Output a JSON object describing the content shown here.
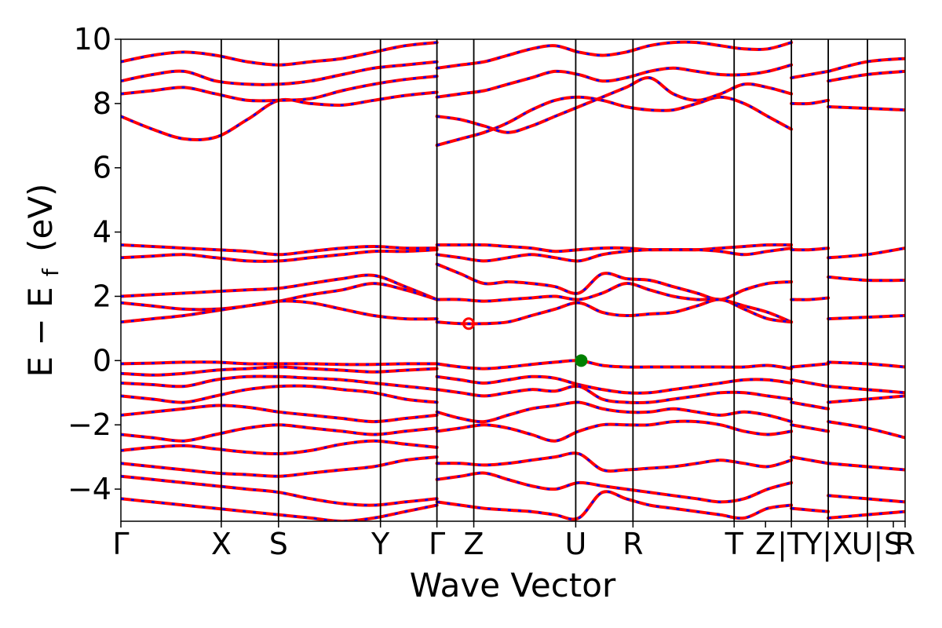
{
  "chart_data": {
    "type": "line",
    "title": "",
    "xlabel": "Wave Vector",
    "ylabel": "E − E",
    "ylabel_subscript": "f",
    "ylabel_unit": "(eV)",
    "ylim": [
      -5,
      10
    ],
    "yticks": [
      -4,
      -2,
      0,
      2,
      4,
      6,
      8,
      10
    ],
    "ytick_labels": [
      "−4",
      "−2",
      "0",
      "2",
      "4",
      "6",
      "8",
      "10"
    ],
    "xlim": [
      0,
      1
    ],
    "kpoint_labels": [
      "Γ",
      "X",
      "S",
      "Y",
      "Γ",
      "Z",
      "U",
      "R",
      "T",
      "Z",
      "|T",
      "Y|X",
      "U|",
      "S",
      "R"
    ],
    "kpoint_positions": [
      0.0,
      0.128,
      0.201,
      0.331,
      0.403,
      0.45,
      0.58,
      0.653,
      0.782,
      0.822,
      0.855,
      0.902,
      0.952,
      0.985,
      1.0
    ],
    "divider_positions": [
      0.128,
      0.201,
      0.331,
      0.403,
      0.45,
      0.58,
      0.653,
      0.782,
      0.855,
      0.902,
      0.952
    ],
    "segment_breaks": [
      0.855,
      0.902,
      0.952
    ],
    "series_colors": {
      "spin_up": "#ff0000",
      "spin_down": "#0000ff"
    },
    "bands_path1": [
      [
        7.6,
        7.2,
        6.9,
        6.95,
        7.5,
        8.1,
        8.0,
        7.95,
        8.1,
        8.25,
        8.35
      ],
      [
        8.3,
        8.4,
        8.5,
        8.3,
        8.1,
        8.1,
        8.15,
        8.4,
        8.6,
        8.75,
        8.85
      ],
      [
        8.7,
        8.9,
        9.0,
        8.7,
        8.6,
        8.6,
        8.7,
        8.9,
        9.1,
        9.2,
        9.3
      ],
      [
        9.3,
        9.5,
        9.6,
        9.5,
        9.3,
        9.2,
        9.3,
        9.4,
        9.6,
        9.8,
        9.9
      ],
      [
        3.6,
        3.55,
        3.5,
        3.45,
        3.4,
        3.3,
        3.4,
        3.5,
        3.55,
        3.5,
        3.5
      ],
      [
        3.2,
        3.25,
        3.3,
        3.2,
        3.1,
        3.1,
        3.2,
        3.3,
        3.4,
        3.4,
        3.45
      ],
      [
        2.0,
        2.05,
        2.1,
        2.15,
        2.2,
        2.25,
        2.4,
        2.55,
        2.65,
        2.3,
        1.9
      ],
      [
        1.8,
        1.7,
        1.6,
        1.6,
        1.7,
        1.85,
        2.05,
        2.2,
        2.4,
        2.2,
        1.9
      ],
      [
        1.2,
        1.3,
        1.4,
        1.55,
        1.7,
        1.85,
        1.8,
        1.6,
        1.4,
        1.3,
        1.3
      ],
      [
        -0.1,
        -0.08,
        -0.05,
        -0.05,
        -0.1,
        -0.1,
        -0.1,
        -0.12,
        -0.12,
        -0.1,
        -0.1
      ],
      [
        -0.4,
        -0.45,
        -0.4,
        -0.3,
        -0.25,
        -0.2,
        -0.25,
        -0.3,
        -0.35,
        -0.3,
        -0.25
      ],
      [
        -0.7,
        -0.75,
        -0.8,
        -0.6,
        -0.5,
        -0.5,
        -0.55,
        -0.6,
        -0.7,
        -0.8,
        -0.9
      ],
      [
        -1.1,
        -1.2,
        -1.3,
        -1.1,
        -0.9,
        -0.8,
        -0.8,
        -0.9,
        -1.0,
        -1.2,
        -1.3
      ],
      [
        -1.7,
        -1.6,
        -1.5,
        -1.4,
        -1.45,
        -1.6,
        -1.7,
        -1.8,
        -1.9,
        -1.8,
        -1.7
      ],
      [
        -2.3,
        -2.4,
        -2.5,
        -2.3,
        -2.1,
        -2.0,
        -2.1,
        -2.2,
        -2.3,
        -2.2,
        -2.1
      ],
      [
        -2.8,
        -2.7,
        -2.65,
        -2.75,
        -2.85,
        -2.9,
        -2.8,
        -2.6,
        -2.5,
        -2.6,
        -2.7
      ],
      [
        -3.2,
        -3.3,
        -3.4,
        -3.5,
        -3.55,
        -3.6,
        -3.5,
        -3.4,
        -3.3,
        -3.1,
        -3.0
      ],
      [
        -3.6,
        -3.7,
        -3.8,
        -3.9,
        -4.0,
        -4.1,
        -4.3,
        -4.45,
        -4.5,
        -4.4,
        -4.3
      ],
      [
        -4.3,
        -4.4,
        -4.5,
        -4.6,
        -4.7,
        -4.8,
        -4.9,
        -5.0,
        -4.9,
        -4.7,
        -4.5
      ]
    ],
    "bands_path2": [
      [
        6.7,
        6.9,
        7.1,
        7.4,
        7.8,
        8.1,
        8.2,
        8.1,
        7.9,
        7.8,
        7.8,
        8.0,
        8.2,
        8.0,
        7.6,
        7.2
      ],
      [
        7.6,
        7.5,
        7.3,
        7.1,
        7.3,
        7.6,
        7.9,
        8.2,
        8.5,
        8.8,
        8.3,
        8.1,
        8.3,
        8.6,
        8.5,
        8.3
      ],
      [
        8.2,
        8.3,
        8.4,
        8.6,
        8.8,
        9.0,
        8.9,
        8.7,
        8.8,
        9.0,
        9.1,
        9.0,
        8.9,
        8.9,
        9.0,
        9.2
      ],
      [
        9.1,
        9.2,
        9.3,
        9.5,
        9.7,
        9.8,
        9.6,
        9.5,
        9.6,
        9.8,
        9.9,
        9.9,
        9.8,
        9.7,
        9.7,
        9.9
      ],
      [
        3.6,
        3.6,
        3.6,
        3.55,
        3.5,
        3.4,
        3.45,
        3.5,
        3.5,
        3.45,
        3.45,
        3.45,
        3.5,
        3.55,
        3.6,
        3.6
      ],
      [
        3.3,
        3.2,
        3.1,
        3.2,
        3.3,
        3.2,
        3.1,
        3.3,
        3.4,
        3.45,
        3.45,
        3.45,
        3.4,
        3.3,
        3.4,
        3.5
      ],
      [
        3.0,
        2.7,
        2.4,
        2.45,
        2.4,
        2.3,
        2.1,
        2.7,
        2.55,
        2.5,
        2.3,
        2.1,
        1.9,
        2.2,
        2.4,
        2.45
      ],
      [
        1.9,
        1.9,
        1.85,
        1.9,
        1.95,
        2.0,
        1.9,
        2.1,
        2.4,
        2.2,
        2.0,
        1.9,
        1.9,
        1.7,
        1.5,
        1.2
      ],
      [
        1.2,
        1.15,
        1.15,
        1.2,
        1.4,
        1.6,
        1.8,
        1.5,
        1.4,
        1.45,
        1.5,
        1.7,
        1.9,
        1.6,
        1.3,
        1.2
      ],
      [
        -0.1,
        -0.2,
        -0.25,
        -0.2,
        -0.12,
        -0.05,
        0.0,
        -0.15,
        -0.2,
        -0.2,
        -0.2,
        -0.2,
        -0.2,
        -0.2,
        -0.15,
        -0.25
      ],
      [
        -0.5,
        -0.6,
        -0.7,
        -0.6,
        -0.5,
        -0.55,
        -0.75,
        -0.9,
        -1.0,
        -1.0,
        -0.9,
        -0.8,
        -0.7,
        -0.6,
        -0.6,
        -0.7
      ],
      [
        -0.9,
        -1.0,
        -1.1,
        -1.0,
        -0.9,
        -0.95,
        -0.8,
        -1.2,
        -1.3,
        -1.3,
        -1.2,
        -1.1,
        -1.0,
        -1.0,
        -1.1,
        -1.2
      ],
      [
        -1.6,
        -1.8,
        -1.9,
        -1.7,
        -1.5,
        -1.4,
        -1.3,
        -1.5,
        -1.6,
        -1.6,
        -1.5,
        -1.6,
        -1.7,
        -1.6,
        -1.7,
        -1.9
      ],
      [
        -2.2,
        -2.1,
        -2.0,
        -2.1,
        -2.3,
        -2.5,
        -2.2,
        -2.0,
        -2.0,
        -2.0,
        -1.9,
        -1.9,
        -2.0,
        -2.2,
        -2.3,
        -2.2
      ],
      [
        -3.2,
        -3.2,
        -3.25,
        -3.2,
        -3.1,
        -3.0,
        -2.9,
        -3.4,
        -3.4,
        -3.35,
        -3.3,
        -3.2,
        -3.1,
        -3.2,
        -3.3,
        -3.1
      ],
      [
        -3.7,
        -3.6,
        -3.5,
        -3.7,
        -3.9,
        -4.0,
        -3.8,
        -3.9,
        -4.0,
        -4.1,
        -4.2,
        -4.3,
        -4.4,
        -4.3,
        -4.0,
        -3.8
      ],
      [
        -4.4,
        -4.5,
        -4.6,
        -4.65,
        -4.7,
        -4.8,
        -4.9,
        -4.1,
        -4.3,
        -4.5,
        -4.6,
        -4.7,
        -4.8,
        -4.9,
        -4.6,
        -4.5
      ]
    ],
    "bands_tail": [
      [
        8.8,
        8.9,
        9.0
      ],
      [
        8.0,
        8.0,
        8.1
      ],
      [
        3.45,
        3.45,
        3.5
      ],
      [
        1.9,
        1.9,
        1.95
      ],
      [
        -0.2,
        -0.15,
        -0.1
      ],
      [
        -0.6,
        -0.7,
        -0.8
      ],
      [
        -1.3,
        -1.4,
        -1.5
      ],
      [
        -2.0,
        -2.1,
        -2.2
      ],
      [
        -3.0,
        -3.1,
        -3.2
      ],
      [
        -4.6,
        -4.65,
        -4.7
      ]
    ],
    "bands_tail2": [
      [
        9.0,
        9.3,
        9.4
      ],
      [
        8.7,
        8.9,
        9.0
      ],
      [
        7.9,
        7.85,
        7.8
      ],
      [
        3.2,
        3.3,
        3.5
      ],
      [
        2.6,
        2.5,
        2.5
      ],
      [
        1.3,
        1.35,
        1.4
      ],
      [
        -0.05,
        -0.1,
        -0.2
      ],
      [
        -0.8,
        -0.9,
        -1.0
      ],
      [
        -1.3,
        -1.2,
        -1.1
      ],
      [
        -1.9,
        -2.1,
        -2.4
      ],
      [
        -3.2,
        -3.3,
        -3.4
      ],
      [
        -4.2,
        -4.3,
        -4.4
      ],
      [
        -4.9,
        -4.8,
        -4.7
      ]
    ],
    "markers": [
      {
        "name": "cbm-marker",
        "x": 0.4435,
        "y": 1.15,
        "color": "#ff0000",
        "filled": false
      },
      {
        "name": "vbm-marker",
        "x": 0.587,
        "y": 0.0,
        "color": "#008000",
        "filled": true
      }
    ]
  }
}
